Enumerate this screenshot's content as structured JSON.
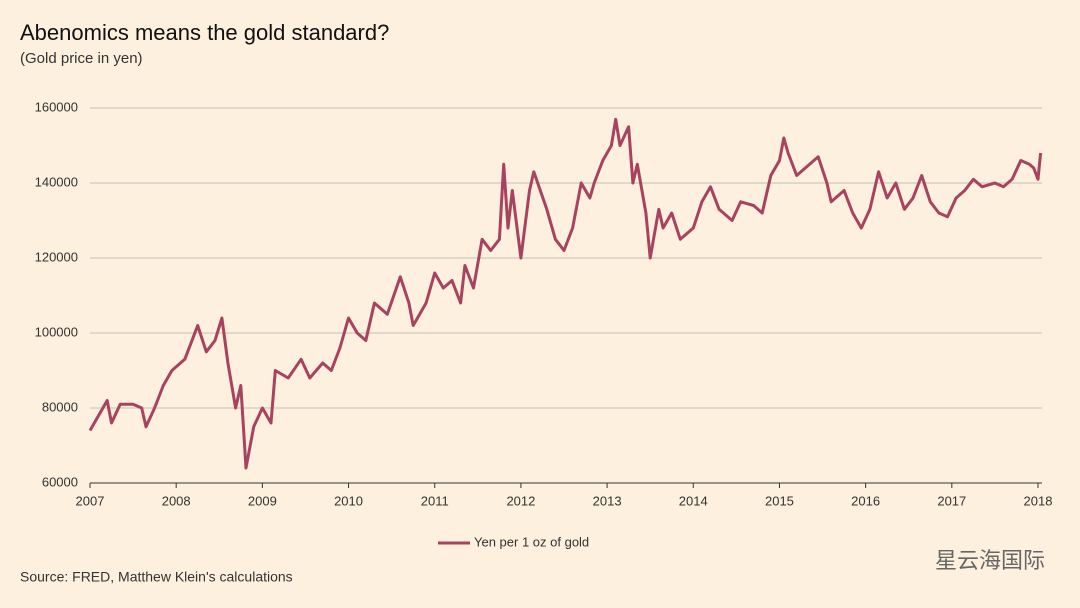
{
  "chart_data": {
    "type": "line",
    "title": "Abenomics means the gold standard?",
    "subtitle": "(Gold price in yen)",
    "source": "Source: FRED, Matthew Klein's calculations",
    "watermark": "星云海国际",
    "legend": "bottom",
    "grid": true,
    "xlim": [
      2007,
      2018
    ],
    "xticks": [
      2007,
      2008,
      2009,
      2010,
      2011,
      2012,
      2013,
      2014,
      2015,
      2016,
      2017,
      2018
    ],
    "ylim": [
      60000,
      160000
    ],
    "yticks": [
      60000,
      80000,
      100000,
      120000,
      140000,
      160000
    ],
    "x": [
      2007.0,
      2007.1,
      2007.2,
      2007.25,
      2007.35,
      2007.5,
      2007.6,
      2007.65,
      2007.75,
      2007.85,
      2007.95,
      2008.1,
      2008.2,
      2008.25,
      2008.35,
      2008.45,
      2008.53,
      2008.6,
      2008.69,
      2008.75,
      2008.81,
      2008.9,
      2009.0,
      2009.1,
      2009.15,
      2009.3,
      2009.45,
      2009.55,
      2009.7,
      2009.8,
      2009.9,
      2010.0,
      2010.1,
      2010.2,
      2010.3,
      2010.45,
      2010.6,
      2010.7,
      2010.75,
      2010.9,
      2011.0,
      2011.1,
      2011.2,
      2011.3,
      2011.35,
      2011.45,
      2011.55,
      2011.65,
      2011.75,
      2011.8,
      2011.85,
      2011.9,
      2012.0,
      2012.1,
      2012.15,
      2012.3,
      2012.4,
      2012.5,
      2012.6,
      2012.7,
      2012.8,
      2012.85,
      2012.95,
      2013.05,
      2013.1,
      2013.15,
      2013.25,
      2013.3,
      2013.35,
      2013.45,
      2013.5,
      2013.6,
      2013.65,
      2013.75,
      2013.85,
      2014.0,
      2014.1,
      2014.2,
      2014.3,
      2014.45,
      2014.55,
      2014.7,
      2014.8,
      2014.9,
      2015.0,
      2015.05,
      2015.1,
      2015.2,
      2015.3,
      2015.45,
      2015.55,
      2015.6,
      2015.75,
      2015.85,
      2015.95,
      2016.05,
      2016.15,
      2016.25,
      2016.35,
      2016.45,
      2016.55,
      2016.65,
      2016.75,
      2016.85,
      2016.95,
      2017.05,
      2017.15,
      2017.25,
      2017.35,
      2017.5,
      2017.6,
      2017.7,
      2017.8,
      2017.9,
      2017.95,
      2018.0,
      2018.03
    ],
    "series": [
      {
        "name": "Yen per 1 oz of gold",
        "color": "#a8435f",
        "values": [
          74000,
          78000,
          82000,
          76000,
          81000,
          81000,
          80000,
          75000,
          80000,
          86000,
          90000,
          93000,
          99000,
          102000,
          95000,
          98000,
          104000,
          92000,
          80000,
          86000,
          64000,
          75000,
          80000,
          76000,
          90000,
          88000,
          93000,
          88000,
          92000,
          90000,
          96000,
          104000,
          100000,
          98000,
          108000,
          105000,
          115000,
          108000,
          102000,
          108000,
          116000,
          112000,
          114000,
          108000,
          118000,
          112000,
          125000,
          122000,
          125000,
          145000,
          128000,
          138000,
          120000,
          138000,
          143000,
          133000,
          125000,
          122000,
          128000,
          140000,
          136000,
          140000,
          146000,
          150000,
          157000,
          150000,
          155000,
          140000,
          145000,
          132000,
          120000,
          133000,
          128000,
          132000,
          125000,
          128000,
          135000,
          139000,
          133000,
          130000,
          135000,
          134000,
          132000,
          142000,
          146000,
          152000,
          148000,
          142000,
          144000,
          147000,
          140000,
          135000,
          138000,
          132000,
          128000,
          133000,
          143000,
          136000,
          140000,
          133000,
          136000,
          142000,
          135000,
          132000,
          131000,
          136000,
          138000,
          141000,
          139000,
          140000,
          139000,
          141000,
          146000,
          145000,
          144000,
          141000,
          148000
        ]
      }
    ]
  }
}
